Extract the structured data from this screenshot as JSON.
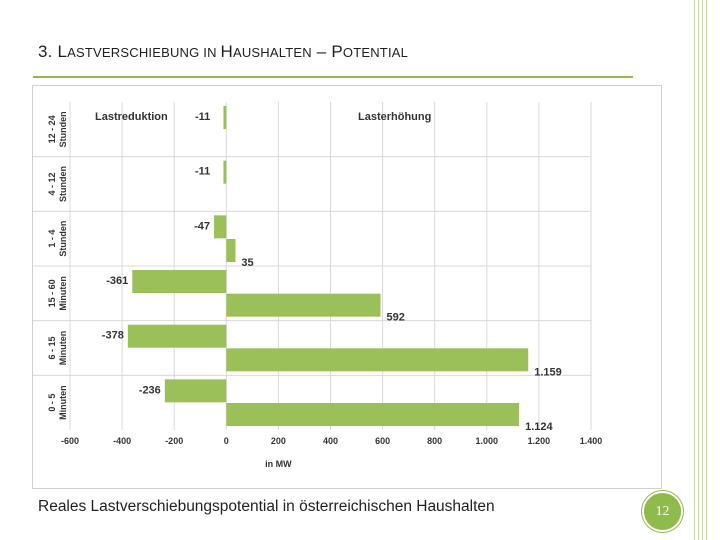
{
  "slide": {
    "title_parts": [
      {
        "text": "3. L",
        "cls": "cap"
      },
      {
        "text": "ASTVERSCHIEBUNG IN ",
        "cls": "sc"
      },
      {
        "text": "H",
        "cls": "cap"
      },
      {
        "text": "AUSHALTEN",
        "cls": "sc"
      },
      {
        "text": " – ",
        "cls": "cap"
      },
      {
        "text": "P",
        "cls": "cap"
      },
      {
        "text": "OTENTIAL",
        "cls": "sc"
      }
    ],
    "caption": "Reales Lastverschiebungspotential in österreichischen Haushalten",
    "page_number": "12",
    "accent_color": "#8fba4c"
  },
  "chart_data": {
    "type": "bar",
    "orientation": "horizontal",
    "xlabel": "in MW",
    "xlim": [
      -600,
      1400
    ],
    "xticks": [
      -600,
      -400,
      -200,
      0,
      200,
      400,
      600,
      800,
      1000,
      1200,
      1400
    ],
    "xtick_labels": [
      "-600",
      "-400",
      "-200",
      "0",
      "200",
      "400",
      "600",
      "800",
      "1.000",
      "1.200",
      "1.400"
    ],
    "grid": true,
    "bar_color": "#9bc05a",
    "annotations": [
      "Lastreduktion",
      "Lasterhöhung"
    ],
    "groups": [
      {
        "label_lines": [
          "12 - 24",
          "Stunden"
        ],
        "reduction": -11,
        "reduction_label": "-11",
        "increase": null,
        "increase_label": ""
      },
      {
        "label_lines": [
          "4 - 12",
          "Stunden"
        ],
        "reduction": -11,
        "reduction_label": "-11",
        "increase": null,
        "increase_label": ""
      },
      {
        "label_lines": [
          "1 - 4",
          "Stunden"
        ],
        "reduction": -47,
        "reduction_label": "-47",
        "increase": 35,
        "increase_label": "35"
      },
      {
        "label_lines": [
          "15 - 60",
          "Minuten"
        ],
        "reduction": -361,
        "reduction_label": "-361",
        "increase": 592,
        "increase_label": "592"
      },
      {
        "label_lines": [
          "6 - 15",
          "Minuten"
        ],
        "reduction": -378,
        "reduction_label": "-378",
        "increase": 1159,
        "increase_label": "1.159"
      },
      {
        "label_lines": [
          "0 - 5",
          "Minuten"
        ],
        "reduction": -236,
        "reduction_label": "-236",
        "increase": 1124,
        "increase_label": "1.124"
      }
    ]
  }
}
